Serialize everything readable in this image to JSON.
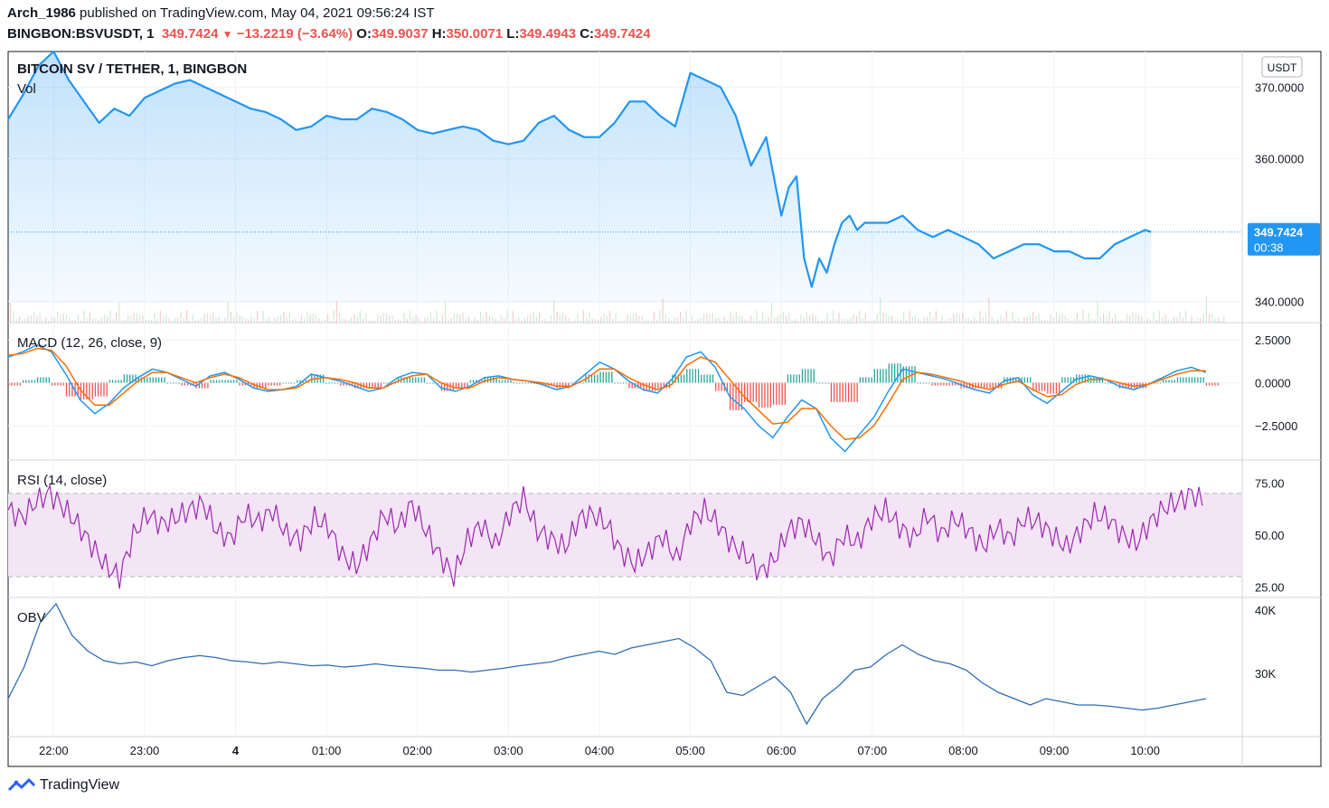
{
  "header": {
    "publisher_user": "Arch_1986",
    "publisher_text": " published on TradingView.com, May 04, 2021 09:56:24 IST",
    "symbol_line": "BINGBON:BSVUSDT, 1",
    "price": "349.7424",
    "change": "−13.2219 (−3.64%)",
    "open_label": "O:",
    "open": "349.9037",
    "high_label": "H:",
    "high": "350.0071",
    "low_label": "L:",
    "low": "349.4943",
    "close_label": "C:",
    "close": "349.7424"
  },
  "footer": {
    "brand": "TradingView"
  },
  "colors": {
    "price_line": "#2196f3",
    "macd": "#2196f3",
    "signal": "#ff6d00",
    "rsi": "#9c27b0",
    "obv": "#2e6db4",
    "hist_up": "#26a69a",
    "hist_down": "#ef5350",
    "rsi_band": "#f3e5f5"
  },
  "chart_data": [
    {
      "type": "area",
      "title": "BITCOIN SV / TETHER, 1, BINGBON",
      "sublabel": "Vol",
      "currency_badge": "USDT",
      "yticks": [
        "370.0000",
        "360.0000",
        "340.0000"
      ],
      "ylim": [
        337,
        375
      ],
      "last_price_label": "349.7424",
      "countdown_label": "00:38",
      "xticks": [
        "22:00",
        "23:00",
        "4",
        "01:00",
        "02:00",
        "03:00",
        "04:00",
        "05:00",
        "06:00",
        "07:00",
        "08:00",
        "09:00",
        "10:00"
      ],
      "x_range": [
        "21:30",
        "10:04"
      ],
      "series": [
        {
          "time": [
            "21:30",
            "21:40",
            "21:50",
            "22:00",
            "22:10",
            "22:20",
            "22:30",
            "22:40",
            "22:50",
            "23:00",
            "23:10",
            "23:20",
            "23:30",
            "23:40",
            "23:50",
            "00:00",
            "00:10",
            "00:20",
            "00:30",
            "00:40",
            "00:50",
            "01:00",
            "01:10",
            "01:20",
            "01:30",
            "01:40",
            "01:50",
            "02:00",
            "02:10",
            "02:20",
            "02:30",
            "02:40",
            "02:50",
            "03:00",
            "03:10",
            "03:20",
            "03:30",
            "03:40",
            "03:50",
            "04:00",
            "04:10",
            "04:20",
            "04:30",
            "04:40",
            "04:50",
            "05:00",
            "05:10",
            "05:20",
            "05:30",
            "05:40",
            "05:50",
            "06:00",
            "06:05",
            "06:10",
            "06:15",
            "06:20",
            "06:25",
            "06:30",
            "06:35",
            "06:40",
            "06:45",
            "06:50",
            "06:55",
            "07:00",
            "07:10",
            "07:20",
            "07:30",
            "07:40",
            "07:50",
            "08:00",
            "08:10",
            "08:20",
            "08:30",
            "08:40",
            "08:50",
            "09:00",
            "09:10",
            "09:20",
            "09:30",
            "09:40",
            "09:50",
            "10:00",
            "10:04"
          ],
          "values": [
            365.5,
            369,
            373,
            375,
            371,
            368,
            365,
            367,
            366,
            368.5,
            369.5,
            370.5,
            371,
            370,
            369,
            368,
            367,
            366.5,
            365.5,
            364,
            364.5,
            366,
            365.5,
            365.5,
            367,
            366.5,
            365.5,
            364,
            363.5,
            364,
            364.5,
            364,
            362.5,
            362,
            362.5,
            365,
            366,
            364,
            363,
            363,
            365,
            368,
            368,
            366,
            364.5,
            372,
            371,
            370,
            366,
            359,
            363,
            352,
            356,
            357.5,
            346,
            342,
            346,
            344,
            348,
            351,
            352,
            350,
            351,
            351,
            351,
            352,
            350,
            349,
            350,
            349,
            348,
            346,
            347,
            348,
            348,
            347,
            347,
            346,
            346,
            348,
            349,
            350,
            349.7
          ]
        }
      ]
    },
    {
      "type": "line",
      "title": "MACD (12, 26, close, 9)",
      "yticks": [
        "2.5000",
        "0.0000",
        "−2.5000"
      ],
      "ylim": [
        -4.5,
        3.5
      ],
      "series": [
        {
          "name": "MACD",
          "values": [
            1.5,
            1.8,
            2.2,
            1.8,
            0.5,
            -1,
            -1.8,
            -1.2,
            -0.3,
            0.3,
            0.8,
            0.6,
            0.2,
            -0.2,
            0.4,
            0.6,
            0.2,
            -0.3,
            -0.5,
            -0.4,
            -0.2,
            0.5,
            0.3,
            0.1,
            -0.2,
            -0.5,
            -0.3,
            0.3,
            0.6,
            0.5,
            -0.3,
            -0.5,
            -0.2,
            0.3,
            0.4,
            0.2,
            0.1,
            -0.1,
            -0.4,
            -0.2,
            0.5,
            1.2,
            0.8,
            0.1,
            -0.4,
            -0.6,
            0.2,
            1.5,
            1.8,
            0.9,
            -0.8,
            -1.5,
            -2.5,
            -3.2,
            -2.0,
            -1.0,
            -1.5,
            -3.2,
            -4.0,
            -3.0,
            -2.0,
            -0.5,
            0.8,
            0.6,
            0.4,
            0.2,
            -0.1,
            -0.4,
            -0.6,
            0.1,
            0.3,
            -0.7,
            -1.2,
            -0.5,
            0.2,
            0.4,
            0.2,
            -0.2,
            -0.4,
            -0.1,
            0.3,
            0.7,
            0.9,
            0.6
          ]
        },
        {
          "name": "Signal",
          "values": [
            1.6,
            1.7,
            2.0,
            1.9,
            1.0,
            -0.4,
            -1.3,
            -1.3,
            -0.6,
            0.1,
            0.6,
            0.6,
            0.3,
            0.0,
            0.3,
            0.5,
            0.3,
            -0.1,
            -0.4,
            -0.4,
            -0.3,
            0.2,
            0.3,
            0.2,
            0.0,
            -0.3,
            -0.3,
            0.1,
            0.4,
            0.5,
            0.0,
            -0.3,
            -0.3,
            0.1,
            0.3,
            0.2,
            0.1,
            0.0,
            -0.2,
            -0.2,
            0.2,
            0.8,
            0.8,
            0.3,
            -0.1,
            -0.4,
            -0.1,
            1.0,
            1.5,
            1.2,
            0.2,
            -0.8,
            -1.6,
            -2.4,
            -2.3,
            -1.5,
            -1.5,
            -2.5,
            -3.3,
            -3.2,
            -2.5,
            -1.2,
            0.2,
            0.6,
            0.5,
            0.3,
            0.1,
            -0.2,
            -0.4,
            -0.1,
            0.1,
            -0.4,
            -0.8,
            -0.7,
            -0.1,
            0.2,
            0.2,
            0.0,
            -0.2,
            -0.1,
            0.2,
            0.5,
            0.7,
            0.7
          ]
        }
      ]
    },
    {
      "type": "line",
      "title": "RSI (14, close)",
      "yticks": [
        "75.00",
        "50.00",
        "25.00"
      ],
      "ylim": [
        20,
        86
      ],
      "band": [
        30,
        70
      ],
      "series": [
        {
          "name": "RSI",
          "values": [
            62,
            58,
            66,
            70,
            63,
            55,
            45,
            35,
            30,
            50,
            60,
            55,
            58,
            62,
            65,
            52,
            48,
            60,
            56,
            62,
            50,
            48,
            58,
            54,
            40,
            35,
            46,
            60,
            54,
            65,
            52,
            40,
            30,
            48,
            55,
            45,
            60,
            68,
            52,
            48,
            44,
            58,
            60,
            55,
            42,
            36,
            42,
            50,
            38,
            56,
            62,
            55,
            45,
            40,
            32,
            38,
            52,
            56,
            48,
            38,
            50,
            46,
            58,
            62,
            54,
            48,
            60,
            50,
            58,
            52,
            44,
            54,
            48,
            58,
            56,
            50,
            44,
            52,
            60,
            58,
            50,
            46,
            56,
            63,
            66,
            70,
            65
          ]
        }
      ]
    },
    {
      "type": "line",
      "title": "OBV",
      "yticks": [
        "40K",
        "30K"
      ],
      "ylim": [
        20000,
        42000
      ],
      "series": [
        {
          "name": "OBV",
          "values": [
            26000,
            31000,
            38000,
            41000,
            36000,
            33500,
            32000,
            31500,
            31800,
            31200,
            32000,
            32500,
            32800,
            32500,
            32000,
            31800,
            31500,
            31800,
            31500,
            31200,
            31300,
            31000,
            31200,
            31500,
            31200,
            31000,
            30800,
            30500,
            30500,
            30200,
            30500,
            30800,
            31200,
            31500,
            31800,
            32500,
            33000,
            33500,
            33000,
            34000,
            34500,
            35000,
            35500,
            34000,
            32000,
            27000,
            26500,
            28000,
            29500,
            27000,
            22000,
            26000,
            28000,
            30500,
            31000,
            33000,
            34500,
            33000,
            32000,
            31500,
            30500,
            28500,
            27000,
            26000,
            25000,
            26000,
            25500,
            25000,
            25000,
            24800,
            24500,
            24200,
            24500,
            25000,
            25500,
            26000
          ]
        }
      ]
    }
  ]
}
